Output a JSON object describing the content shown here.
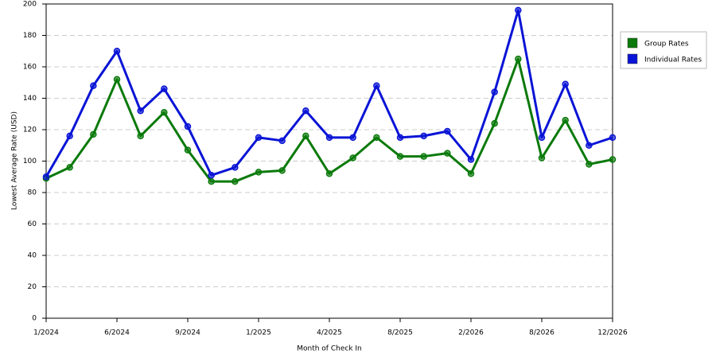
{
  "chart_data": {
    "type": "line",
    "x_label": "Month of Check In",
    "y_label": "Lowest Average Rate (USD)",
    "categories": [
      "1/2024",
      null,
      null,
      "6/2024",
      null,
      null,
      "9/2024",
      null,
      null,
      "1/2025",
      null,
      null,
      "4/2025",
      null,
      null,
      "8/2025",
      null,
      null,
      "2/2026",
      null,
      null,
      "8/2026",
      null,
      null,
      "12/2026"
    ],
    "series": [
      {
        "name": "Group Rates",
        "color": "#0b7a0b",
        "values": [
          89,
          96,
          117,
          152,
          116,
          131,
          107,
          87,
          87,
          93,
          94,
          116,
          92,
          102,
          115,
          103,
          103,
          105,
          92,
          124,
          165,
          102,
          126,
          98,
          101
        ]
      },
      {
        "name": "Individual Rates",
        "color": "#0a14d6",
        "values": [
          90,
          116,
          148,
          170,
          132,
          146,
          122,
          91,
          96,
          115,
          113,
          132,
          115,
          115,
          148,
          115,
          116,
          119,
          101,
          144,
          196,
          115,
          149,
          110,
          115
        ]
      }
    ],
    "ylim": [
      0,
      200
    ],
    "yticks": [
      0,
      20,
      40,
      60,
      80,
      100,
      120,
      140,
      160,
      180,
      200
    ],
    "grid": true,
    "legend": "right"
  }
}
